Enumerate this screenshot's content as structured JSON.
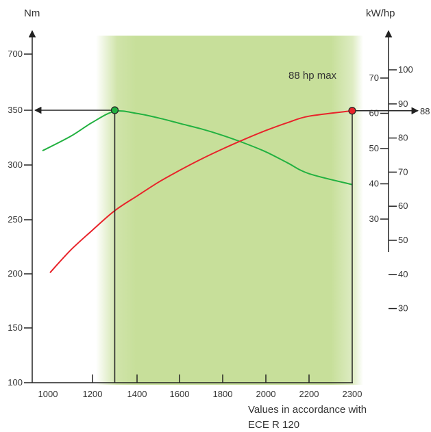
{
  "chart_data": {
    "type": "line",
    "left_axis_label": "Nm",
    "right_axis_label": "kW/hp",
    "x_ticks": [
      "1000",
      "1200",
      "1400",
      "1600",
      "1800",
      "2000",
      "2200",
      "2300"
    ],
    "left_tick_labels": [
      "700",
      "350",
      "300",
      "250",
      "200",
      "150",
      "100"
    ],
    "kw_tick_labels": [
      "70",
      "60",
      "50",
      "40",
      "30"
    ],
    "hp_tick_labels": [
      "100",
      "90",
      "80",
      "70",
      "60",
      "50",
      "40",
      "30"
    ],
    "x_range": [
      1000,
      2300
    ],
    "torque_range": [
      100,
      350
    ],
    "hp_range": [
      30,
      100
    ],
    "shaded_band_rpm": [
      1250,
      2250
    ],
    "series": [
      {
        "type": "torque",
        "color": "#22b140",
        "x": [
          1000,
          1100,
          1200,
          1300,
          1400,
          1500,
          1600,
          1700,
          1800,
          1900,
          2000,
          2100,
          2200,
          2300
        ],
        "y": [
          313,
          326,
          339,
          349,
          347,
          343,
          338,
          333,
          327,
          320,
          312,
          302,
          292,
          282
        ]
      },
      {
        "type": "power",
        "color": "#e8232a",
        "x": [
          1000,
          1100,
          1200,
          1300,
          1400,
          1500,
          1600,
          1700,
          1800,
          1900,
          2000,
          2100,
          2200,
          2300
        ],
        "y": [
          40.5,
          47,
          53,
          58.7,
          63,
          67,
          70.5,
          73.8,
          76.8,
          79.6,
          82.2,
          84.5,
          86.4,
          88
        ]
      }
    ],
    "peak_torque_marker": {
      "x": 1300,
      "y": 350,
      "label": "350"
    },
    "max_power_marker": {
      "x": 2300,
      "y": 88,
      "label": "88"
    },
    "annotation": "88 hp max",
    "footnote_line1": "Values in accordance with",
    "footnote_line2": "ECE R 120"
  }
}
